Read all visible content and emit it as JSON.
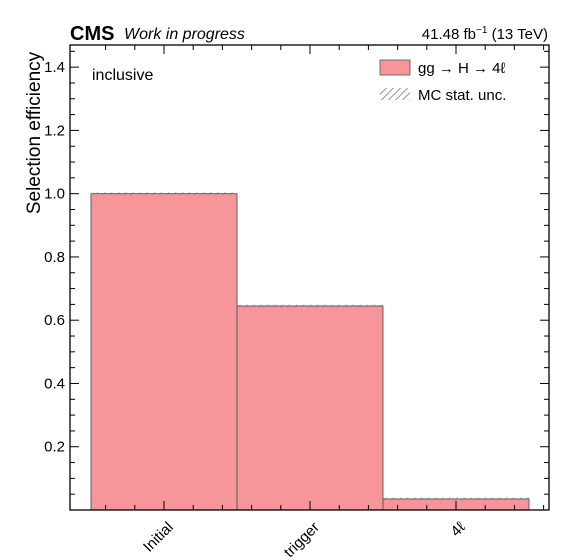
{
  "header": {
    "experiment": "CMS",
    "status": "Work in progress",
    "lumi_value": "41.48 fb",
    "lumi_exp": "−1",
    "lumi_energy": " (13 TeV)"
  },
  "chart_data": {
    "type": "bar",
    "style": "step-histogram",
    "categories": [
      "Initial",
      "trigger",
      "4ℓ"
    ],
    "values": [
      1.0,
      0.645,
      0.035
    ],
    "ylabel": "Selection efficiency",
    "xlabel": "",
    "ylim": [
      0.0,
      1.47
    ],
    "yticks": [
      "0.2",
      "0.4",
      "0.6",
      "0.8",
      "1.0",
      "1.2",
      "1.4"
    ],
    "annotation": "inclusive",
    "legend": {
      "placement": "top-right",
      "entries": [
        {
          "label": "gg → H → 4ℓ",
          "kind": "fill",
          "color": "#f7969a"
        },
        {
          "label": "MC stat. unc.",
          "kind": "hatch",
          "color": "#888888"
        }
      ]
    },
    "fill_color": "#f7969a",
    "edge_color": "#555555"
  }
}
